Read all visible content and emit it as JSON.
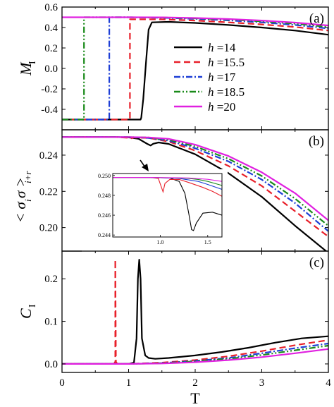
{
  "figure": {
    "x_axis_label": "T",
    "x_ticks": [
      "0",
      "1",
      "2",
      "3",
      "4"
    ]
  },
  "chart_data": [
    {
      "type": "line",
      "panel_label": "(a)",
      "ylabel_main": "M",
      "ylabel_sub": "I",
      "xlim": [
        0,
        4
      ],
      "ylim": [
        -0.6,
        0.6
      ],
      "yticks": [
        "0.6",
        "0.4",
        "0.2",
        "0.0",
        "-0.2",
        "-0.4"
      ],
      "legend": {
        "placement": "center-right",
        "var": "h",
        "entries": [
          "=14",
          "=15.5",
          "=17",
          "=18.5",
          "=20"
        ]
      },
      "series": [
        {
          "name": "h=14",
          "color": "#000000",
          "dash": "solid",
          "x": [
            0,
            1.18,
            1.19,
            1.22,
            1.26,
            1.3,
            1.35,
            1.6,
            2.0,
            2.5,
            3.0,
            3.5,
            4.0
          ],
          "y": [
            -0.5,
            -0.5,
            -0.48,
            -0.3,
            0.05,
            0.38,
            0.45,
            0.455,
            0.445,
            0.425,
            0.4,
            0.37,
            0.33
          ]
        },
        {
          "name": "h=15.5",
          "color": "#e8202a",
          "dash": "dashed",
          "x": [
            0,
            1.0,
            1.02,
            1.02,
            1.05,
            1.5,
            2.0,
            2.5,
            3.0,
            3.5,
            4.0
          ],
          "y": [
            -0.5,
            -0.5,
            -0.5,
            0.48,
            0.48,
            0.48,
            0.468,
            0.45,
            0.43,
            0.405,
            0.37
          ]
        },
        {
          "name": "h=17",
          "color": "#1e3fd6",
          "dash": "dashdot",
          "x": [
            0,
            0.71,
            0.71,
            1.0,
            1.5,
            2.0,
            2.5,
            3.0,
            3.5,
            4.0
          ],
          "y": [
            -0.5,
            -0.5,
            0.5,
            0.5,
            0.495,
            0.485,
            0.47,
            0.45,
            0.425,
            0.39
          ]
        },
        {
          "name": "h=18.5",
          "color": "#1a8a1a",
          "dash": "dashdotdot",
          "x": [
            0,
            0.33,
            0.33,
            1.0,
            1.5,
            2.0,
            2.5,
            3.0,
            3.5,
            4.0
          ],
          "y": [
            -0.5,
            -0.5,
            0.5,
            0.5,
            0.498,
            0.49,
            0.478,
            0.46,
            0.438,
            0.405
          ]
        },
        {
          "name": "h=20",
          "color": "#e020e0",
          "dash": "solid",
          "x": [
            0,
            1.0,
            1.5,
            2.0,
            2.5,
            3.0,
            3.5,
            4.0
          ],
          "y": [
            0.5,
            0.5,
            0.499,
            0.493,
            0.483,
            0.468,
            0.448,
            0.42
          ]
        }
      ]
    },
    {
      "type": "line",
      "panel_label": "(b)",
      "ylabel_text": "< σ σ >",
      "ylabel_sub1": "i",
      "ylabel_sub2": "i+r",
      "xlim": [
        0,
        4
      ],
      "ylim": [
        0.187,
        0.254
      ],
      "yticks": [
        "0.24",
        "0.22",
        "0.20"
      ],
      "series": [
        {
          "name": "h=14",
          "color": "#000000",
          "dash": "solid",
          "x": [
            0,
            0.8,
            1.0,
            1.15,
            1.28,
            1.33,
            1.37,
            1.45,
            1.6,
            2.0,
            2.5,
            3.0,
            3.5,
            4.0
          ],
          "y": [
            0.25,
            0.25,
            0.2498,
            0.249,
            0.2462,
            0.2453,
            0.2463,
            0.247,
            0.2462,
            0.2405,
            0.23,
            0.217,
            0.201,
            0.186
          ]
        },
        {
          "name": "h=15.5",
          "color": "#e8202a",
          "dash": "dashed",
          "x": [
            0,
            0.8,
            1.0,
            1.03,
            1.08,
            1.3,
            1.6,
            2.0,
            2.5,
            3.0,
            3.5,
            4.0
          ],
          "y": [
            0.25,
            0.25,
            0.2496,
            0.2492,
            0.2497,
            0.2495,
            0.2475,
            0.2425,
            0.234,
            0.223,
            0.209,
            0.195
          ]
        },
        {
          "name": "h=17",
          "color": "#1e3fd6",
          "dash": "dashdot",
          "x": [
            0,
            1.0,
            1.3,
            1.6,
            2.0,
            2.5,
            3.0,
            3.5,
            4.0
          ],
          "y": [
            0.25,
            0.25,
            0.2495,
            0.248,
            0.2438,
            0.2365,
            0.2265,
            0.2135,
            0.198
          ]
        },
        {
          "name": "h=18.5",
          "color": "#1a8a1a",
          "dash": "dashdotdot",
          "x": [
            0,
            1.0,
            1.3,
            1.6,
            2.0,
            2.5,
            3.0,
            3.5,
            4.0
          ],
          "y": [
            0.25,
            0.25,
            0.2497,
            0.2485,
            0.2448,
            0.238,
            0.2285,
            0.216,
            0.201
          ]
        },
        {
          "name": "h=20",
          "color": "#e020e0",
          "dash": "solid",
          "x": [
            0,
            1.0,
            1.3,
            1.6,
            2.0,
            2.5,
            3.0,
            3.5,
            4.0
          ],
          "y": [
            0.25,
            0.25,
            0.2498,
            0.249,
            0.2458,
            0.2395,
            0.2305,
            0.219,
            0.204
          ]
        }
      ],
      "inset": {
        "xlim": [
          0.5,
          1.65
        ],
        "ylim": [
          0.2438,
          0.2502
        ],
        "xticks": [
          "1.0",
          "1.5"
        ],
        "yticks": [
          "0.250",
          "0.248",
          "0.246",
          "0.244"
        ],
        "series": [
          {
            "color": "#000000",
            "x": [
              0.5,
              0.9,
              1.1,
              1.2,
              1.26,
              1.3,
              1.33,
              1.35,
              1.38,
              1.45,
              1.55,
              1.65
            ],
            "y": [
              0.2498,
              0.2498,
              0.24975,
              0.2494,
              0.2482,
              0.2462,
              0.24455,
              0.24445,
              0.2452,
              0.2462,
              0.2463,
              0.246
            ]
          },
          {
            "color": "#e8202a",
            "x": [
              0.5,
              0.9,
              0.98,
              1.01,
              1.03,
              1.05,
              1.1,
              1.2,
              1.3,
              1.45,
              1.55,
              1.65
            ],
            "y": [
              0.2498,
              0.2498,
              0.2497,
              0.2489,
              0.24835,
              0.2492,
              0.2496,
              0.2496,
              0.2493,
              0.2488,
              0.2484,
              0.2479
            ]
          },
          {
            "color": "#1e3fd6",
            "x": [
              0.5,
              0.9,
              1.1,
              1.2,
              1.3,
              1.4,
              1.5,
              1.65
            ],
            "y": [
              0.2498,
              0.2498,
              0.24975,
              0.2497,
              0.24955,
              0.2494,
              0.2491,
              0.2486
            ]
          },
          {
            "color": "#1a8a1a",
            "x": [
              0.5,
              0.9,
              1.1,
              1.2,
              1.3,
              1.4,
              1.5,
              1.65
            ],
            "y": [
              0.2498,
              0.2498,
              0.24977,
              0.24975,
              0.2497,
              0.2496,
              0.2494,
              0.249
            ]
          },
          {
            "color": "#e020e0",
            "x": [
              0.5,
              0.9,
              1.1,
              1.3,
              1.5,
              1.65
            ],
            "y": [
              0.2498,
              0.2498,
              0.24978,
              0.24975,
              0.24962,
              0.2494
            ]
          }
        ]
      }
    },
    {
      "type": "line",
      "panel_label": "(c)",
      "ylabel_main": "C",
      "ylabel_sub": "I",
      "xlim": [
        0,
        4
      ],
      "ylim": [
        -0.02,
        0.265
      ],
      "yticks": [
        "0.2",
        "0.1",
        "0.0"
      ],
      "series": [
        {
          "name": "h=14",
          "color": "#000000",
          "dash": "solid",
          "x": [
            0,
            1.0,
            1.08,
            1.12,
            1.14,
            1.16,
            1.18,
            1.2,
            1.25,
            1.3,
            1.4,
            1.6,
            2.0,
            2.4,
            2.8,
            3.2,
            3.6,
            4.0
          ],
          "y": [
            0,
            0,
            0.003,
            0.06,
            0.2,
            0.245,
            0.2,
            0.06,
            0.02,
            0.014,
            0.012,
            0.014,
            0.02,
            0.028,
            0.038,
            0.05,
            0.06,
            0.065
          ]
        },
        {
          "name": "h=15.5",
          "color": "#e8202a",
          "dash": "dashed",
          "x": [
            0,
            0.78,
            0.8,
            0.8,
            0.81,
            0.83,
            1.0,
            1.5,
            2.0,
            2.5,
            3.0,
            3.5,
            4.0
          ],
          "y": [
            0,
            0,
            0.005,
            0.245,
            0.005,
            0,
            0.0,
            0.003,
            0.009,
            0.018,
            0.03,
            0.044,
            0.056
          ]
        },
        {
          "name": "h=17",
          "color": "#1e3fd6",
          "dash": "dashdot",
          "x": [
            0,
            1.0,
            1.5,
            2.0,
            2.5,
            3.0,
            3.5,
            4.0
          ],
          "y": [
            0,
            0,
            0.002,
            0.007,
            0.014,
            0.025,
            0.037,
            0.048
          ]
        },
        {
          "name": "h=18.5",
          "color": "#1a8a1a",
          "dash": "dashdotdot",
          "x": [
            0,
            1.0,
            1.5,
            2.0,
            2.5,
            3.0,
            3.5,
            4.0
          ],
          "y": [
            0,
            0,
            0.0015,
            0.006,
            0.012,
            0.021,
            0.032,
            0.043
          ]
        },
        {
          "name": "h=20",
          "color": "#e020e0",
          "dash": "solid",
          "x": [
            0,
            1.0,
            1.5,
            2.0,
            2.5,
            3.0,
            3.5,
            4.0
          ],
          "y": [
            0,
            0,
            0.001,
            0.004,
            0.009,
            0.016,
            0.025,
            0.035
          ]
        }
      ]
    }
  ]
}
